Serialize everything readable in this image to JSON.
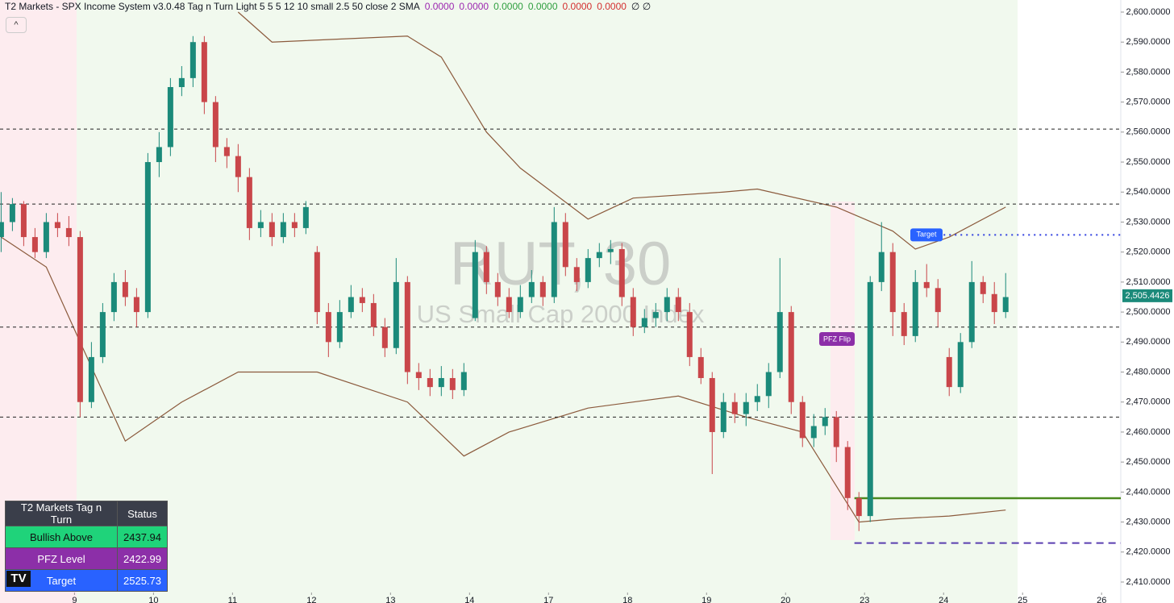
{
  "header": {
    "title": "T2 Markets - SPX Income System v3.0.48 Tag n Turn Light 5 5 5 12 10 small 2.5 50 close 2 SMA",
    "indicator_values": [
      {
        "text": "0.0000",
        "color": "#9c27b0"
      },
      {
        "text": "0.0000",
        "color": "#9c27b0"
      },
      {
        "text": "0.0000",
        "color": "#2e9e3e"
      },
      {
        "text": "0.0000",
        "color": "#2e9e3e"
      },
      {
        "text": "0.0000",
        "color": "#d32f2f"
      },
      {
        "text": "0.0000",
        "color": "#d32f2f"
      }
    ],
    "extra": "∅ ∅"
  },
  "chart_data": {
    "type": "candlestick",
    "watermark_symbol": "RUT, 30",
    "watermark_name": "US Small Cap 2000 Index",
    "up_color": "#1b8a7a",
    "down_color": "#c9464a",
    "xlim": [
      -0.1,
      99.2
    ],
    "xticks": [
      {
        "value": 6.5,
        "label": "9"
      },
      {
        "value": 13.5,
        "label": "10"
      },
      {
        "value": 20.5,
        "label": "11"
      },
      {
        "value": 27.5,
        "label": "12"
      },
      {
        "value": 34.5,
        "label": "13"
      },
      {
        "value": 41.5,
        "label": "14"
      },
      {
        "value": 48.5,
        "label": "17"
      },
      {
        "value": 55.5,
        "label": "18"
      },
      {
        "value": 62.5,
        "label": "19"
      },
      {
        "value": 69.5,
        "label": "20"
      },
      {
        "value": 76.5,
        "label": "23"
      },
      {
        "value": 83.5,
        "label": "24"
      },
      {
        "value": 90.5,
        "label": "25"
      },
      {
        "value": 97.5,
        "label": "26"
      }
    ],
    "ylim": [
      2410,
      2600
    ],
    "yticks": [
      {
        "value": 2410,
        "label": "2,410.0000"
      },
      {
        "value": 2420,
        "label": "2,420.0000"
      },
      {
        "value": 2430,
        "label": "2,430.0000"
      },
      {
        "value": 2440,
        "label": "2,440.0000"
      },
      {
        "value": 2450,
        "label": "2,450.0000"
      },
      {
        "value": 2460,
        "label": "2,460.0000"
      },
      {
        "value": 2470,
        "label": "2,470.0000"
      },
      {
        "value": 2480,
        "label": "2,480.0000"
      },
      {
        "value": 2490,
        "label": "2,490.0000"
      },
      {
        "value": 2500,
        "label": "2,500.0000"
      },
      {
        "value": 2510,
        "label": "2,510.0000"
      },
      {
        "value": 2520,
        "label": "2,520.0000"
      },
      {
        "value": 2530,
        "label": "2,530.0000"
      },
      {
        "value": 2540,
        "label": "2,540.0000"
      },
      {
        "value": 2550,
        "label": "2,550.0000"
      },
      {
        "value": 2560,
        "label": "2,560.0000"
      },
      {
        "value": 2570,
        "label": "2,570.0000"
      },
      {
        "value": 2580,
        "label": "2,580.0000"
      },
      {
        "value": 2590,
        "label": "2,590.0000"
      },
      {
        "value": 2600,
        "label": "2,600.0000"
      }
    ],
    "open": [
      2525,
      2530,
      2536,
      2525,
      2520,
      2530,
      2528,
      2525,
      2470,
      2485,
      2500,
      2510,
      2505,
      2500,
      2550,
      2555,
      2575,
      2578,
      2590,
      2570,
      2555,
      2552,
      2545,
      2528,
      2530,
      2525,
      2530,
      2528,
      2520,
      2500,
      2490,
      2500,
      2505,
      2503,
      2495,
      2488,
      2510,
      2480,
      2478,
      2475,
      2478,
      2474,
      2498,
      2520,
      2510,
      2505,
      2500,
      2505,
      2510,
      2505,
      2530,
      2515,
      2510,
      2518,
      2520,
      2521,
      2505,
      2495,
      2498,
      2500,
      2505,
      2500,
      2485,
      2478,
      2460,
      2470,
      2466,
      2470,
      2472,
      2480,
      2500,
      2470,
      2458,
      2462,
      2465,
      2455,
      2438,
      2432,
      2510,
      2520,
      2500,
      2492,
      2510,
      2508,
      2485,
      2475,
      2490,
      2510,
      2506,
      2500
    ],
    "high": [
      2540,
      2538,
      2537,
      2528,
      2533,
      2533,
      2532,
      2527,
      2490,
      2503,
      2513,
      2514,
      2508,
      2553,
      2560,
      2578,
      2582,
      2592,
      2592,
      2572,
      2558,
      2556,
      2548,
      2534,
      2533,
      2533,
      2533,
      2537,
      2522,
      2503,
      2504,
      2509,
      2508,
      2506,
      2498,
      2518,
      2512,
      2483,
      2481,
      2482,
      2481,
      2483,
      2524,
      2522,
      2513,
      2508,
      2509,
      2514,
      2512,
      2535,
      2533,
      2518,
      2521,
      2523,
      2524,
      2523,
      2508,
      2501,
      2503,
      2508,
      2508,
      2503,
      2488,
      2480,
      2473,
      2473,
      2473,
      2476,
      2483,
      2518,
      2502,
      2472,
      2466,
      2468,
      2467,
      2457,
      2440,
      2512,
      2530,
      2523,
      2503,
      2514,
      2516,
      2511,
      2488,
      2493,
      2517,
      2512,
      2510,
      2513
    ],
    "low": [
      2520,
      2527,
      2522,
      2518,
      2518,
      2525,
      2522,
      2465,
      2468,
      2483,
      2497,
      2502,
      2495,
      2498,
      2545,
      2552,
      2572,
      2575,
      2566,
      2550,
      2548,
      2540,
      2524,
      2525,
      2522,
      2523,
      2525,
      2526,
      2496,
      2485,
      2488,
      2498,
      2500,
      2492,
      2485,
      2486,
      2476,
      2474,
      2472,
      2472,
      2471,
      2472,
      2497,
      2506,
      2502,
      2498,
      2498,
      2503,
      2502,
      2503,
      2512,
      2507,
      2508,
      2515,
      2516,
      2502,
      2492,
      2493,
      2495,
      2497,
      2497,
      2482,
      2476,
      2446,
      2458,
      2463,
      2462,
      2467,
      2468,
      2478,
      2466,
      2455,
      2455,
      2459,
      2450,
      2434,
      2427,
      2430,
      2507,
      2492,
      2489,
      2490,
      2505,
      2495,
      2472,
      2473,
      2488,
      2503,
      2496,
      2498
    ],
    "close": [
      2530,
      2536,
      2525,
      2520,
      2530,
      2528,
      2525,
      2470,
      2485,
      2500,
      2510,
      2505,
      2500,
      2550,
      2555,
      2575,
      2578,
      2590,
      2570,
      2555,
      2552,
      2545,
      2528,
      2530,
      2525,
      2530,
      2528,
      2535,
      2500,
      2490,
      2500,
      2505,
      2503,
      2495,
      2488,
      2510,
      2480,
      2478,
      2475,
      2478,
      2474,
      2480,
      2520,
      2510,
      2505,
      2500,
      2505,
      2510,
      2505,
      2530,
      2515,
      2510,
      2518,
      2520,
      2521,
      2505,
      2495,
      2498,
      2500,
      2505,
      2500,
      2485,
      2478,
      2460,
      2470,
      2466,
      2470,
      2472,
      2480,
      2500,
      2470,
      2458,
      2462,
      2465,
      2455,
      2438,
      2432,
      2510,
      2520,
      2500,
      2492,
      2510,
      2508,
      2500,
      2475,
      2490,
      2510,
      2506,
      2500,
      2505
    ],
    "bands": [
      {
        "color": "#8b5a3c",
        "x": [
          21,
          24,
          36,
          39,
          43,
          46,
          52,
          56,
          64,
          67,
          74,
          79,
          81,
          84,
          89
        ],
        "values": [
          2600,
          2590,
          2592,
          2585,
          2560,
          2548,
          2531,
          2538,
          2540,
          2541,
          2535,
          2527,
          2521,
          2525,
          2535
        ]
      },
      {
        "color": "#8b5a3c",
        "x": [
          0,
          4,
          7,
          11,
          16,
          21,
          28,
          36,
          41,
          45,
          52,
          60,
          66,
          71,
          76,
          79,
          84,
          89
        ],
        "values": [
          2525,
          2515,
          2490,
          2457,
          2470,
          2480,
          2480,
          2470,
          2452,
          2460,
          2468,
          2472,
          2465,
          2460,
          2430,
          2431,
          2432,
          2434
        ]
      }
    ],
    "levels": [
      {
        "value": 2561,
        "color": "#222222",
        "dash": "4 4",
        "x_start": -0.1
      },
      {
        "value": 2536,
        "color": "#222222",
        "dash": "4 4",
        "x_start": -0.1
      },
      {
        "value": 2495,
        "color": "#222222",
        "dash": "4 4",
        "x_start": -0.1
      },
      {
        "value": 2465,
        "color": "#222222",
        "dash": "4 4",
        "x_start": -0.1
      },
      {
        "value": 2525.73,
        "color": "#2f3fe0",
        "dash": "2 5",
        "x_start": 82
      },
      {
        "value": 2437.94,
        "color": "#4a8a1f",
        "dash": "",
        "x_start": 75.6
      },
      {
        "value": 2422.99,
        "color": "#5a3fb0",
        "dash": "9 6",
        "x_start": 75.6
      }
    ],
    "last_price": {
      "value": 2505.4426,
      "label": "2,505.4426",
      "color": "#1b8a7a"
    },
    "target_label": "Target",
    "pfz_flip_label": "PFZ Flip"
  },
  "table": {
    "header": [
      "T2 Markets Tag n Turn",
      "Status"
    ],
    "rows": [
      {
        "label": "Bullish Above",
        "color": "#1fd37a",
        "level": 5
      },
      {
        "label": "PFZ Level",
        "color": "#8c2fa8",
        "level": 6
      },
      {
        "label": "Target",
        "color": "#2962ff",
        "level": 4
      }
    ]
  }
}
